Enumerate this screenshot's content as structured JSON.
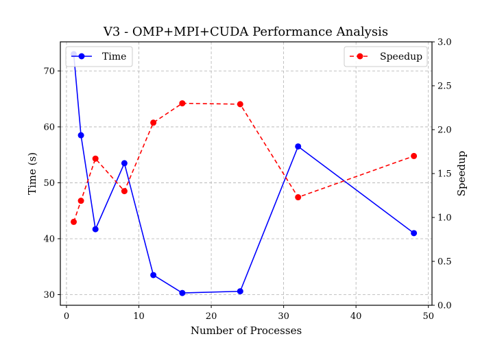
{
  "chart_data": {
    "type": "line",
    "title": "V3 - OMP+MPI+CUDA Performance Analysis",
    "xlabel": "Number of Processes",
    "ylabel_left": "Time (s)",
    "ylabel_right": "Speedup",
    "x": [
      1,
      2,
      4,
      8,
      12,
      16,
      24,
      32,
      48
    ],
    "xlim": [
      -0.85,
      50.5
    ],
    "ylim_left": [
      28.1,
      75.2
    ],
    "ylim_right": [
      0.0,
      3.0
    ],
    "xticks": [
      0,
      10,
      20,
      30,
      40,
      50
    ],
    "yticks_left": [
      30,
      40,
      50,
      60,
      70
    ],
    "yticks_right": [
      0.0,
      0.5,
      1.0,
      1.5,
      2.0,
      2.5,
      3.0
    ],
    "xtick_labels": [
      "0",
      "10",
      "20",
      "30",
      "40",
      "50"
    ],
    "ytick_labels_left": [
      "30",
      "40",
      "50",
      "60",
      "70"
    ],
    "ytick_labels_right": [
      "0.0",
      "0.5",
      "1.0",
      "1.5",
      "2.0",
      "2.5",
      "3.0"
    ],
    "grid": true,
    "series": [
      {
        "name": "Time",
        "axis": "left",
        "color": "#0000ff",
        "linestyle": "solid",
        "marker": "circle",
        "values": [
          73.0,
          58.5,
          41.7,
          53.5,
          33.5,
          30.3,
          30.6,
          56.5,
          41.0
        ]
      },
      {
        "name": "Speedup",
        "axis": "right",
        "color": "#ff0000",
        "linestyle": "dashed",
        "marker": "circle",
        "values": [
          0.95,
          1.19,
          1.67,
          1.3,
          2.08,
          2.3,
          2.29,
          1.23,
          1.7
        ]
      }
    ],
    "legends": [
      {
        "series": "Time",
        "placement": "upper-left"
      },
      {
        "series": "Speedup",
        "placement": "upper-right"
      }
    ]
  }
}
